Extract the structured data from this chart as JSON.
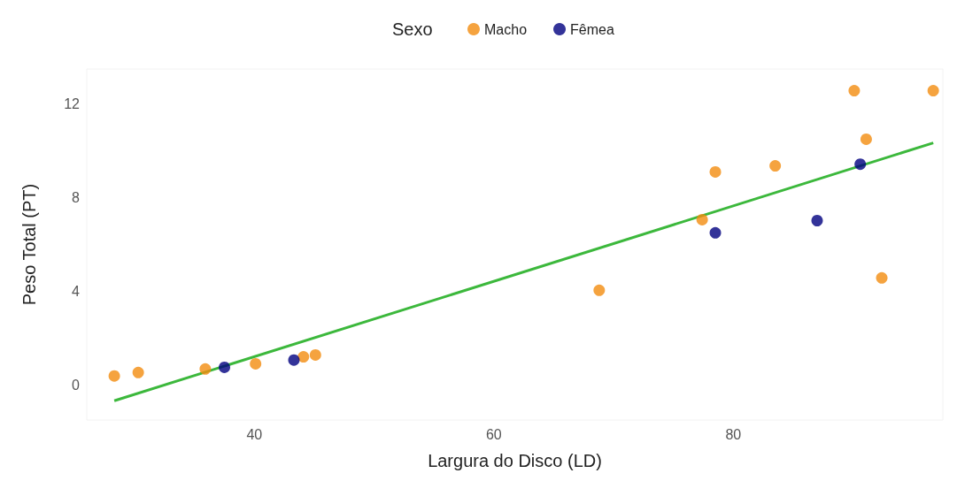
{
  "chart_data": {
    "type": "scatter",
    "xlabel": "Largura do Disco (LD)",
    "ylabel": "Peso Total (PT)",
    "legend_title": "Sexo",
    "legend": "top",
    "grid": false,
    "marker": "circle",
    "xlim": [
      26,
      97.5
    ],
    "xticks": [
      40,
      60,
      80
    ],
    "ylim": [
      -1.5,
      13.5
    ],
    "yticks": [
      0,
      4,
      8,
      12
    ],
    "series": [
      {
        "name": "Macho",
        "color": "#f28c0f",
        "x": [
          28.3,
          30.3,
          35.9,
          40.1,
          44.1,
          45.1,
          68.8,
          77.4,
          78.5,
          83.5,
          90.1,
          91.1,
          92.4,
          96.7
        ],
        "values": [
          0.38,
          0.53,
          0.68,
          0.9,
          1.2,
          1.28,
          4.04,
          7.06,
          9.1,
          9.36,
          12.57,
          10.5,
          4.57,
          12.57
        ]
      },
      {
        "name": "Fêmea",
        "color": "#000080",
        "x": [
          37.5,
          43.3,
          78.5,
          87.0,
          90.6
        ],
        "values": [
          0.75,
          1.06,
          6.5,
          7.02,
          9.43
        ]
      },
      {
        "type": "line",
        "marker": "none",
        "color": "#3cb83c",
        "x": [
          28.3,
          96.7
        ],
        "values": [
          -0.68,
          10.34
        ]
      }
    ]
  }
}
